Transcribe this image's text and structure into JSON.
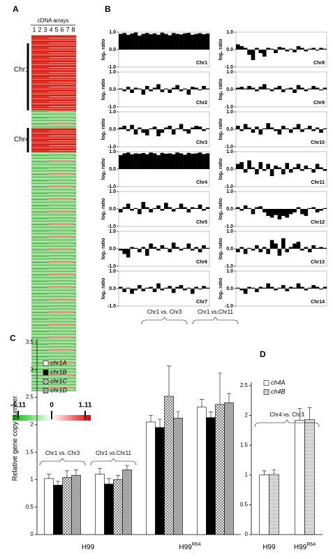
{
  "panel_labels": [
    "A",
    "B",
    "C",
    "D"
  ],
  "heatmap": {
    "title": "cDNA arrays",
    "columns": [
      "1",
      "2",
      "3",
      "4",
      "5",
      "6",
      "7",
      "8"
    ],
    "row_labels": [
      "Chr1",
      "Chr4"
    ],
    "scale": [
      "-1.11",
      "0",
      "1.11"
    ]
  },
  "chart_data": [
    {
      "type": "profile",
      "ylabel": "log₂ ratio",
      "ylim": [
        -1,
        1
      ],
      "yticks": [
        {
          "value": 1,
          "label": "1.0"
        },
        {
          "value": 0,
          "label": "0.0"
        },
        {
          "value": -1,
          "label": "-1.0"
        }
      ],
      "color": "#000000",
      "series": [
        {
          "name": "Chr1",
          "values": [
            0.9,
            0.95,
            0.85,
            0.92,
            0.98,
            0.8,
            0.9,
            0.95,
            0.88,
            0.93,
            0.85,
            0.97,
            0.9,
            0.82,
            0.95,
            0.9,
            0.87,
            0.93,
            0.96,
            0.85,
            0.9,
            0.94,
            0.88,
            0.92
          ]
        },
        {
          "name": "Chr2",
          "values": [
            0.05,
            -0.1,
            0.15,
            -0.2,
            0.1,
            0.05,
            -0.3,
            0.2,
            -0.1,
            0.1,
            0.3,
            -0.15,
            0.05,
            -0.2,
            0.1,
            0.25,
            -0.1,
            0.05,
            -0.3,
            0.15,
            0.1,
            -0.05,
            0.2,
            0.05
          ]
        },
        {
          "name": "Chr3",
          "values": [
            0.1,
            0.2,
            -0.1,
            0.25,
            -0.3,
            0.1,
            -0.2,
            -0.35,
            0.05,
            0.15,
            -0.4,
            -0.2,
            0.1,
            0.2,
            -0.3,
            0.05,
            0.3,
            -0.1,
            -0.25,
            0.1,
            0.2,
            0.15,
            -0.1,
            0.05
          ]
        },
        {
          "name": "Chr4",
          "values": [
            0.8,
            0.9,
            0.95,
            0.85,
            0.9,
            0.88,
            0.92,
            0.85,
            0.95,
            0.9,
            0.8,
            0.93,
            0.88,
            0.9,
            0.85,
            0.95,
            0.9,
            0.82,
            0.93,
            0.88,
            0.9,
            0.95,
            0.86,
            0.9
          ]
        },
        {
          "name": "Chr5",
          "values": [
            -0.2,
            0.1,
            0.3,
            -0.1,
            0.05,
            -0.3,
            0.4,
            0.1,
            -0.2,
            0.05,
            0.2,
            -0.1,
            0.35,
            0.1,
            -0.15,
            0.05,
            0.3,
            0.1,
            -0.2,
            0.1,
            0.05,
            0.25,
            -0.1,
            0.1
          ]
        },
        {
          "name": "Chr6",
          "values": [
            -0.1,
            -0.3,
            -0.5,
            0.1,
            0.05,
            -0.2,
            0.1,
            -0.4,
            0.3,
            0.1,
            -0.1,
            0.2,
            0.05,
            -0.2,
            0.35,
            0.1,
            -0.1,
            0.05,
            0.3,
            -0.1,
            0.1,
            -0.2,
            0.2,
            0.05
          ]
        },
        {
          "name": "Chr7",
          "values": [
            0.1,
            -0.2,
            0.05,
            -0.3,
            -0.1,
            0.2,
            -0.15,
            0.05,
            0.1,
            -0.2,
            0.3,
            -0.1,
            0.05,
            0.15,
            -0.25,
            0.1,
            0.2,
            -0.1,
            0.05,
            -0.3,
            0.1,
            -0.05,
            0.15,
            0.05
          ]
        },
        {
          "name": "Chr8",
          "values": [
            0.3,
            0.2,
            0.1,
            -0.3,
            -0.6,
            0.1,
            -0.2,
            -0.4,
            0.1,
            0.05,
            -0.2,
            0.15,
            0.1,
            -0.1,
            0.05,
            -0.15,
            0.2,
            0.1,
            -0.1,
            0.05,
            0.1,
            -0.05,
            0.1,
            0.05
          ]
        },
        {
          "name": "Chr9",
          "values": [
            0.1,
            0.15,
            0.05,
            0.2,
            0.1,
            -0.1,
            0.15,
            0.3,
            0.05,
            -0.1,
            0.1,
            0.2,
            -0.15,
            0.05,
            0.1,
            -0.2,
            0.25,
            0.1,
            -0.1,
            0.05,
            0.2,
            0.1,
            -0.05,
            0.1
          ]
        },
        {
          "name": "Chr10",
          "values": [
            0.2,
            -0.1,
            0.3,
            0.1,
            -0.2,
            0.15,
            -0.3,
            0.05,
            0.35,
            0.1,
            -0.1,
            -0.3,
            0.2,
            0.05,
            -0.2,
            0.1,
            0.3,
            -0.15,
            0.05,
            0.2,
            -0.1,
            0.1,
            -0.2,
            0.05
          ]
        },
        {
          "name": "Chr11",
          "values": [
            0.3,
            0.4,
            -0.2,
            0.5,
            0.1,
            -0.3,
            0.4,
            -0.1,
            0.3,
            -0.4,
            0.2,
            0.1,
            -0.3,
            0.35,
            -0.2,
            0.1,
            0.3,
            -0.1,
            0.2,
            0.05,
            -0.2,
            0.3,
            0.1,
            -0.1
          ]
        },
        {
          "name": "Chr12",
          "values": [
            0.1,
            -0.1,
            0.2,
            0.05,
            -0.3,
            0.1,
            0.15,
            -0.2,
            -0.4,
            -0.5,
            -0.35,
            -0.6,
            -0.4,
            -0.5,
            -0.3,
            -0.2,
            0.1,
            -0.3,
            -0.4,
            0.05,
            0.1,
            -0.2,
            -0.1,
            0.05
          ]
        },
        {
          "name": "Chr13",
          "values": [
            -0.2,
            0.1,
            -0.3,
            0.05,
            -0.1,
            0.2,
            -0.2,
            0.1,
            -0.3,
            0.5,
            0.3,
            -0.4,
            0.6,
            -0.2,
            0.1,
            0.3,
            0.4,
            -0.1,
            0.1,
            -0.2,
            0.2,
            0.05,
            0.1,
            0.05
          ]
        },
        {
          "name": "Chr14",
          "values": [
            0.05,
            -0.1,
            -0.3,
            0.1,
            0.05,
            -0.2,
            0.1,
            0.05,
            0.3,
            0.1,
            -0.1,
            0.05,
            0.2,
            -0.15,
            0.1,
            0.05,
            0.3,
            0.1,
            -0.1,
            0.05,
            0.2,
            0.1,
            -0.05,
            0.1
          ]
        }
      ]
    },
    {
      "type": "bar",
      "ylabel": "Relative gene copy number",
      "ylim": [
        0,
        3.5
      ],
      "yticks": [
        0,
        0.5,
        1,
        1.5,
        2,
        2.5,
        3,
        3.5
      ],
      "groups": [
        {
          "label": "H99",
          "categories": [
            "Chr1 vs. Chr3",
            "Chr1 vs.Chr11"
          ]
        },
        {
          "label": "H99",
          "label_sup": "R64",
          "categories": [
            "Chr1 vs. Chr3",
            "Chr1 vs.Chr11"
          ]
        }
      ],
      "series": [
        {
          "name": "chr1A",
          "color": "#ffffff",
          "values": [
            1.02,
            1.1,
            2.05,
            2.32
          ],
          "errors": [
            0.08,
            0.1,
            0.12,
            0.14
          ]
        },
        {
          "name": "chr1B",
          "color": "#000000",
          "values": [
            0.9,
            0.92,
            1.95,
            2.13
          ],
          "errors": [
            0.07,
            0.1,
            0.15,
            0.1
          ]
        },
        {
          "name": "chr1C",
          "color": "#ffffff",
          "pattern": "crosshatch",
          "values": [
            1.04,
            1.0,
            2.52,
            2.37
          ],
          "errors": [
            0.12,
            0.08,
            0.55,
            0.57
          ]
        },
        {
          "name": "chr1D",
          "color": "#a6a6a6",
          "values": [
            1.08,
            1.18,
            2.12,
            2.4
          ],
          "errors": [
            0.1,
            0.08,
            0.12,
            0.17
          ]
        }
      ]
    },
    {
      "type": "bar",
      "ylim": [
        0,
        2.5
      ],
      "yticks": [
        0,
        0.5,
        1,
        1.5,
        2,
        2.5
      ],
      "annotation": "Chr4 vs. Chr3",
      "groups": [
        {
          "label": "H99"
        },
        {
          "label": "H99",
          "label_sup": "R64"
        }
      ],
      "series": [
        {
          "name": "ch4A",
          "color": "#ffffff",
          "values": [
            1.0,
            1.92
          ],
          "errors": [
            0.07,
            0.2
          ]
        },
        {
          "name": "ch4B",
          "color": "#d9d9d9",
          "pattern": "hlines",
          "values": [
            1.01,
            1.93
          ],
          "errors": [
            0.08,
            0.2
          ]
        }
      ]
    }
  ]
}
